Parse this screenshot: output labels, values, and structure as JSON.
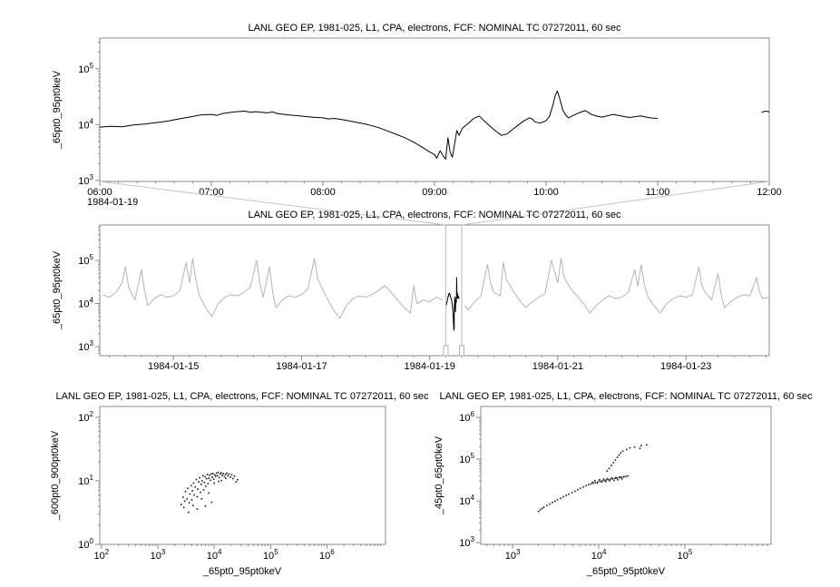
{
  "chart_data": [
    {
      "id": "zoom_timeseries",
      "type": "line",
      "title": "LANL GEO EP, 1981-025, L1, CPA, electrons, FCF: NOMINAL TC 07272011, 60 sec",
      "ylabel": "_65pt0_95pt0keV",
      "line_color": "#000000",
      "x_axis": {
        "scale": "time",
        "date_label": "1984-01-19",
        "min_hour": 6,
        "max_hour": 12,
        "tick_hours": [
          6,
          7,
          8,
          9,
          10,
          11,
          12
        ],
        "tick_labels": [
          "06:00",
          "07:00",
          "08:00",
          "09:00",
          "10:00",
          "11:00",
          "12:00"
        ]
      },
      "y_axis": {
        "scale": "log",
        "min_exp": 2.98,
        "max_exp": 5.55,
        "tick_exponents": [
          3,
          4,
          5
        ]
      },
      "segments": [
        {
          "x": [
            6.0,
            6.1,
            6.2,
            6.3,
            6.4,
            6.5,
            6.6,
            6.7,
            6.8,
            6.9,
            7.0,
            7.05,
            7.1,
            7.2,
            7.3,
            7.35,
            7.4,
            7.5,
            7.55,
            7.6,
            7.7,
            7.8,
            7.9,
            8.0,
            8.05,
            8.1,
            8.2,
            8.3,
            8.4,
            8.5,
            8.6,
            8.7,
            8.75,
            8.8,
            8.85,
            8.9,
            8.95,
            9.0,
            9.02,
            9.05,
            9.08,
            9.1,
            9.12,
            9.14,
            9.16,
            9.2,
            9.22,
            9.25,
            9.3,
            9.35,
            9.4,
            9.42,
            9.45,
            9.5,
            9.55,
            9.6,
            9.65,
            9.7,
            9.75,
            9.8,
            9.85,
            9.88,
            9.9,
            9.95,
            10.0,
            10.03,
            10.06,
            10.08,
            10.1,
            10.12,
            10.15,
            10.18,
            10.2,
            10.25,
            10.3,
            10.35,
            10.38,
            10.4,
            10.45,
            10.5,
            10.55,
            10.6,
            10.65,
            10.7,
            10.75,
            10.8,
            10.85,
            10.9,
            10.95,
            11.0
          ],
          "y": [
            9000,
            9300,
            9100,
            9800,
            10200,
            10800,
            11500,
            12500,
            13600,
            14800,
            15200,
            14600,
            15800,
            16800,
            17400,
            16600,
            17000,
            16200,
            16800,
            15600,
            14800,
            14200,
            13600,
            13200,
            12600,
            12900,
            12000,
            11000,
            10000,
            8800,
            7400,
            6200,
            5600,
            5000,
            4400,
            3800,
            3300,
            2900,
            2500,
            3400,
            2700,
            2400,
            5800,
            3200,
            2600,
            7800,
            6400,
            8600,
            10400,
            12800,
            14200,
            13000,
            11400,
            9200,
            7600,
            6400,
            6800,
            8200,
            9800,
            11600,
            13200,
            12400,
            11200,
            10600,
            11800,
            14000,
            22000,
            32000,
            40000,
            30000,
            18000,
            14500,
            13200,
            14800,
            16400,
            17800,
            16600,
            15400,
            14200,
            13600,
            14400,
            15200,
            14600,
            13900,
            13400,
            13900,
            14300,
            13600,
            13100,
            12900
          ]
        },
        {
          "x": [
            11.93,
            11.97,
            12.0
          ],
          "y": [
            16500,
            17500,
            16800
          ]
        }
      ]
    },
    {
      "id": "context_overview",
      "type": "line",
      "title": "LANL GEO EP, 1981-025, L1, CPA, electrons, FCF: NOMINAL TC 07272011, 60 sec",
      "ylabel": "_65pt0_95pt0keV",
      "line_color": "#b4b4b4",
      "highlight_color": "#000000",
      "x_axis": {
        "scale": "time",
        "min_day": 13.85,
        "max_day": 24.3,
        "tick_days": [
          15,
          17,
          19,
          21,
          23
        ],
        "tick_labels": [
          "1984-01-15",
          "1984-01-17",
          "1984-01-19",
          "1984-01-21",
          "1984-01-23"
        ]
      },
      "y_axis": {
        "scale": "log",
        "min_exp": 2.79,
        "max_exp": 5.82,
        "tick_exponents": [
          3,
          4,
          5
        ]
      },
      "selection": {
        "start_day": 19.25,
        "end_day": 19.5,
        "start_time": "1984-01-19 06:00",
        "end_time": "1984-01-19 12:00"
      },
      "segments": [
        {
          "x": [
            13.9,
            14.0,
            14.1,
            14.2,
            14.25,
            14.3,
            14.4,
            14.5,
            14.55,
            14.6,
            14.7,
            14.8,
            14.9,
            15.0,
            15.1,
            15.2,
            15.25,
            15.3,
            15.35,
            15.4,
            15.5,
            15.6,
            15.7,
            15.8,
            15.9,
            16.0,
            16.1,
            16.2,
            16.3,
            16.35,
            16.4,
            16.5,
            16.55,
            16.6,
            16.7,
            16.8,
            16.9,
            17.0,
            17.1,
            17.2,
            17.25,
            17.3,
            17.4,
            17.5,
            17.6,
            17.7,
            17.8,
            17.9,
            18.0,
            18.1,
            18.2,
            18.3,
            18.4,
            18.5,
            18.6,
            18.7,
            18.75,
            18.8,
            18.9,
            19.0,
            19.1,
            19.2
          ],
          "y": [
            16000,
            14000,
            18000,
            30000,
            70000,
            24000,
            12000,
            60000,
            20000,
            9000,
            13000,
            16000,
            14000,
            15000,
            20000,
            90000,
            30000,
            110000,
            35000,
            16000,
            8000,
            5000,
            10000,
            14000,
            16000,
            15000,
            18000,
            24000,
            100000,
            28000,
            14000,
            70000,
            18000,
            8000,
            12000,
            15000,
            14000,
            16000,
            22000,
            110000,
            40000,
            26000,
            13000,
            7000,
            4500,
            9000,
            13000,
            15000,
            14000,
            16000,
            20000,
            26000,
            18000,
            12000,
            8000,
            6000,
            26000,
            10000,
            12000,
            11000,
            14000,
            12000
          ]
        },
        {
          "x": [
            19.55,
            19.6,
            19.7,
            19.8,
            19.9,
            19.95,
            20.0,
            20.1,
            20.15,
            20.2,
            20.3,
            20.4,
            20.5,
            20.6,
            20.7,
            20.8,
            20.9,
            21.0,
            21.05,
            21.1,
            21.2,
            21.3,
            21.4,
            21.5,
            21.6,
            21.7,
            21.8,
            21.9,
            22.0,
            22.1,
            22.2,
            22.25,
            22.3,
            22.35,
            22.4,
            22.5,
            22.6,
            22.7,
            22.8,
            22.9,
            23.0,
            23.1,
            23.2,
            23.25,
            23.3,
            23.4,
            23.5,
            23.55,
            23.6,
            23.7,
            23.8,
            23.9,
            24.0,
            24.1,
            24.15,
            24.2,
            24.3
          ],
          "y": [
            9000,
            7000,
            11000,
            15000,
            80000,
            30000,
            18000,
            15000,
            90000,
            35000,
            20000,
            12000,
            8000,
            11000,
            14000,
            17000,
            100000,
            30000,
            110000,
            40000,
            22000,
            15000,
            10000,
            6000,
            9000,
            12000,
            15000,
            13000,
            14000,
            18000,
            60000,
            25000,
            80000,
            28000,
            15000,
            9000,
            6000,
            10000,
            13000,
            15000,
            14000,
            16000,
            70000,
            26000,
            18000,
            12000,
            50000,
            16000,
            8000,
            11000,
            14000,
            16000,
            15000,
            40000,
            18000,
            13000,
            14000
          ]
        }
      ]
    },
    {
      "id": "scatter_600_900",
      "type": "scatter",
      "title": "LANL GEO EP, 1981-025, L1, CPA, electrons, FCF: NOMINAL TC 07272011, 60 sec",
      "xlabel": "_65pt0_95pt0keV",
      "ylabel": "_600pt0_900pt0keV",
      "point_color": "#1a1a1a",
      "x_axis": {
        "scale": "log",
        "min_exp": 1.97,
        "max_exp": 7.04,
        "tick_exponents": [
          2,
          3,
          4,
          5,
          6
        ]
      },
      "y_axis": {
        "scale": "log",
        "min_exp": 0,
        "max_exp": 2.17,
        "tick_exponents": [
          0,
          1,
          2
        ]
      },
      "points": [
        [
          2600,
          4.2
        ],
        [
          2800,
          5.5
        ],
        [
          2900,
          3.8
        ],
        [
          3000,
          4.8
        ],
        [
          3100,
          6.8
        ],
        [
          3300,
          5.2
        ],
        [
          3400,
          7.6
        ],
        [
          3500,
          3.2
        ],
        [
          3600,
          4.5
        ],
        [
          3700,
          6.2
        ],
        [
          3900,
          8.4
        ],
        [
          4000,
          5.0
        ],
        [
          4100,
          7.0
        ],
        [
          4200,
          4.1
        ],
        [
          4300,
          9.2
        ],
        [
          4400,
          6.0
        ],
        [
          4600,
          8.0
        ],
        [
          4800,
          10.5
        ],
        [
          5000,
          3.6
        ],
        [
          5000,
          5.6
        ],
        [
          5100,
          7.4
        ],
        [
          5300,
          9.6
        ],
        [
          5500,
          11.2
        ],
        [
          5700,
          6.6
        ],
        [
          5900,
          8.8
        ],
        [
          6000,
          5.2
        ],
        [
          6100,
          10.0
        ],
        [
          6300,
          12.0
        ],
        [
          6500,
          7.2
        ],
        [
          6700,
          9.4
        ],
        [
          6900,
          11.6
        ],
        [
          7000,
          4.0
        ],
        [
          7100,
          8.2
        ],
        [
          7300,
          10.8
        ],
        [
          7600,
          12.6
        ],
        [
          7800,
          9.0
        ],
        [
          8000,
          6.4
        ],
        [
          8000,
          11.0
        ],
        [
          8300,
          12.2
        ],
        [
          8600,
          10.2
        ],
        [
          8900,
          12.8
        ],
        [
          9000,
          4.6
        ],
        [
          9200,
          11.4
        ],
        [
          9500,
          13.0
        ],
        [
          9800,
          10.6
        ],
        [
          10000,
          9.2
        ],
        [
          10200,
          12.4
        ],
        [
          10600,
          11.8
        ],
        [
          11000,
          13.2
        ],
        [
          11400,
          12.0
        ],
        [
          11800,
          13.6
        ],
        [
          12000,
          9.8
        ],
        [
          12300,
          11.2
        ],
        [
          12800,
          12.8
        ],
        [
          13300,
          13.4
        ],
        [
          13500,
          10.1
        ],
        [
          13900,
          12.2
        ],
        [
          14500,
          13.0
        ],
        [
          15200,
          11.6
        ],
        [
          15900,
          12.6
        ],
        [
          16000,
          10.9
        ],
        [
          16700,
          13.2
        ],
        [
          17500,
          12.0
        ],
        [
          18400,
          12.8
        ],
        [
          19400,
          11.4
        ],
        [
          20500,
          12.4
        ],
        [
          21700,
          10.8
        ],
        [
          23000,
          11.8
        ],
        [
          24500,
          9.6
        ],
        [
          26000,
          10.4
        ]
      ]
    },
    {
      "id": "scatter_45_65",
      "type": "scatter",
      "title": "LANL GEO EP, 1981-025, L1, CPA, electrons, FCF: NOMINAL TC 07272011, 60 sec",
      "xlabel": "_65pt0_95pt0keV",
      "ylabel": "_45pt0_65pt0keV",
      "point_color": "#1a1a1a",
      "x_axis": {
        "scale": "log",
        "min_exp": 2.63,
        "max_exp": 6.0,
        "tick_exponents": [
          3,
          4,
          5
        ]
      },
      "y_axis": {
        "scale": "log",
        "min_exp": 2.96,
        "max_exp": 6.26,
        "tick_exponents": [
          3,
          4,
          5,
          6
        ]
      },
      "points": [
        [
          2000,
          5600
        ],
        [
          2100,
          6200
        ],
        [
          2200,
          6600
        ],
        [
          2300,
          7000
        ],
        [
          2500,
          7800
        ],
        [
          2700,
          8400
        ],
        [
          2900,
          9200
        ],
        [
          3100,
          9800
        ],
        [
          3300,
          10600
        ],
        [
          3600,
          11500
        ],
        [
          3900,
          12500
        ],
        [
          4200,
          13500
        ],
        [
          4500,
          14500
        ],
        [
          4900,
          15800
        ],
        [
          5300,
          17000
        ],
        [
          5700,
          18500
        ],
        [
          6100,
          20000
        ],
        [
          6600,
          21500
        ],
        [
          7100,
          23000
        ],
        [
          7600,
          24500
        ],
        [
          8100,
          25500
        ],
        [
          8600,
          26500
        ],
        [
          9100,
          27500
        ],
        [
          9700,
          28500
        ],
        [
          10300,
          29500
        ],
        [
          10900,
          30000
        ],
        [
          11500,
          30800
        ],
        [
          12200,
          31500
        ],
        [
          12900,
          32200
        ],
        [
          13700,
          33000
        ],
        [
          14500,
          33800
        ],
        [
          15400,
          34500
        ],
        [
          16300,
          35200
        ],
        [
          17300,
          36000
        ],
        [
          18300,
          36800
        ],
        [
          19400,
          37500
        ],
        [
          20600,
          38500
        ],
        [
          21800,
          39500
        ],
        [
          8400,
          28000
        ],
        [
          9000,
          30500
        ],
        [
          9600,
          26500
        ],
        [
          10200,
          32000
        ],
        [
          10800,
          28500
        ],
        [
          11400,
          33000
        ],
        [
          12000,
          29000
        ],
        [
          12600,
          34000
        ],
        [
          13400,
          30500
        ],
        [
          14200,
          35000
        ],
        [
          15000,
          31000
        ],
        [
          15800,
          36000
        ],
        [
          16600,
          32000
        ],
        [
          17600,
          37000
        ],
        [
          18600,
          33500
        ],
        [
          19600,
          38000
        ],
        [
          12500,
          52000
        ],
        [
          13200,
          60000
        ],
        [
          14000,
          70000
        ],
        [
          14800,
          82000
        ],
        [
          15600,
          95000
        ],
        [
          16400,
          110000
        ],
        [
          17200,
          125000
        ],
        [
          18000,
          140000
        ],
        [
          19000,
          155000
        ],
        [
          21000,
          170000
        ],
        [
          23000,
          185000
        ],
        [
          26000,
          195000
        ],
        [
          30000,
          180000
        ],
        [
          31000,
          210000
        ],
        [
          36000,
          220000
        ]
      ]
    }
  ]
}
